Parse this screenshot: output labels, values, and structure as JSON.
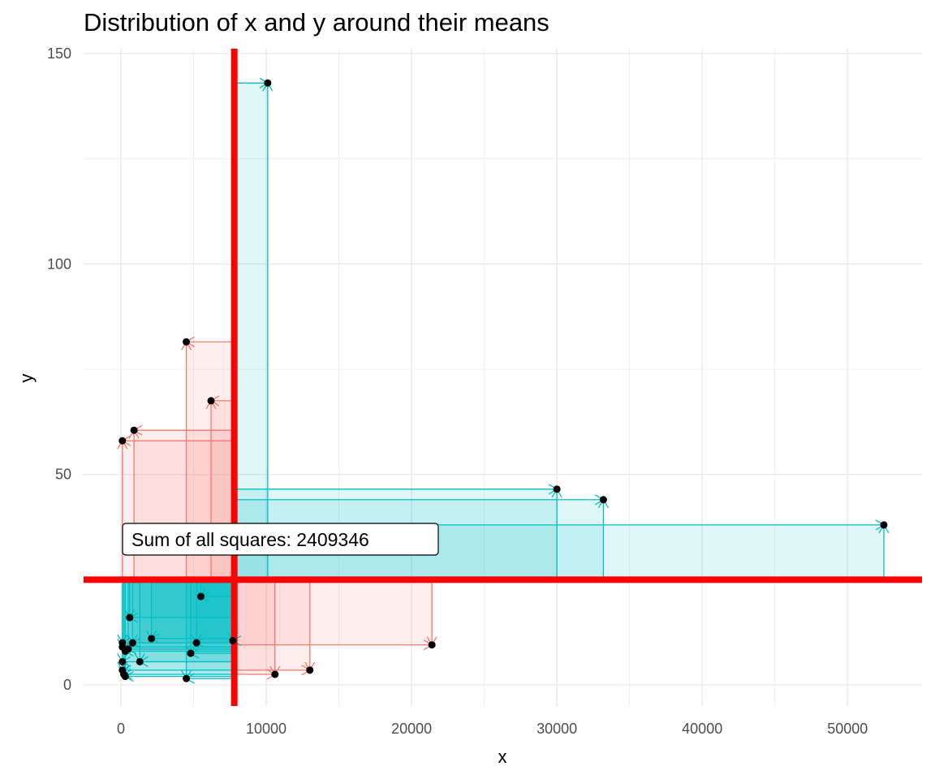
{
  "chart_data": {
    "type": "scatter",
    "title": "Distribution of x and y around their means",
    "xlabel": "x",
    "ylabel": "y",
    "xlim": [
      -2500,
      55000
    ],
    "ylim": [
      -5,
      150
    ],
    "x_ticks": [
      0,
      10000,
      20000,
      30000,
      40000,
      50000
    ],
    "y_ticks": [
      0,
      50,
      100,
      150
    ],
    "x_tick_labels": [
      "0",
      "10000",
      "20000",
      "30000",
      "40000",
      "50000"
    ],
    "y_tick_labels": [
      "0",
      "50",
      "100",
      "150"
    ],
    "grid": true,
    "legend": "none",
    "mean_x": 7800,
    "mean_y": 25,
    "annotation": "Sum of all squares: 2409346",
    "points": [
      {
        "x": 10100,
        "y": 143
      },
      {
        "x": 4500,
        "y": 81.5
      },
      {
        "x": 6200,
        "y": 67.5
      },
      {
        "x": 900,
        "y": 60.5
      },
      {
        "x": 100,
        "y": 58
      },
      {
        "x": 30000,
        "y": 46.5
      },
      {
        "x": 33200,
        "y": 44
      },
      {
        "x": 52500,
        "y": 38
      },
      {
        "x": 5500,
        "y": 21
      },
      {
        "x": 21400,
        "y": 9.5
      },
      {
        "x": 600,
        "y": 16
      },
      {
        "x": 2100,
        "y": 11
      },
      {
        "x": 5200,
        "y": 10
      },
      {
        "x": 7700,
        "y": 10.5
      },
      {
        "x": 800,
        "y": 10
      },
      {
        "x": 100,
        "y": 10
      },
      {
        "x": 100,
        "y": 9
      },
      {
        "x": 300,
        "y": 8
      },
      {
        "x": 500,
        "y": 8.5
      },
      {
        "x": 4800,
        "y": 7.5
      },
      {
        "x": 1300,
        "y": 5.5
      },
      {
        "x": 100,
        "y": 5.5
      },
      {
        "x": 13000,
        "y": 3.5
      },
      {
        "x": 10600,
        "y": 2.5
      },
      {
        "x": 100,
        "y": 3.5
      },
      {
        "x": 200,
        "y": 2.5
      },
      {
        "x": 300,
        "y": 2
      },
      {
        "x": 4500,
        "y": 1.5
      }
    ],
    "colors": {
      "positive": "#00BFC4",
      "negative": "#F8766D",
      "mean_line": "#FF0000",
      "point": "#000000",
      "grid": "#EBEBEB"
    }
  }
}
